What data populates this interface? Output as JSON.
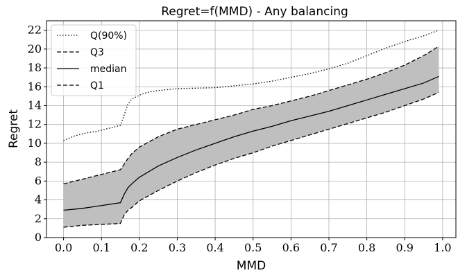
{
  "chart_data": {
    "type": "line",
    "title": "Regret=f(MMD) - Any balancing",
    "xlabel": "MMD",
    "ylabel": "Regret",
    "xlim": [
      -0.045,
      1.035
    ],
    "ylim": [
      0,
      23
    ],
    "xticks": [
      "0.0",
      "0.1",
      "0.2",
      "0.3",
      "0.4",
      "0.5",
      "0.6",
      "0.7",
      "0.8",
      "0.9",
      "1.0"
    ],
    "yticks": [
      "0",
      "2",
      "4",
      "6",
      "8",
      "10",
      "12",
      "14",
      "16",
      "18",
      "20",
      "22"
    ],
    "grid": true,
    "legend_position": "top-left",
    "shaded_band": "between Q1 and Q3",
    "colors": {
      "band": "#bfbfbf",
      "lines": "#000000",
      "grid": "#b0b0b0"
    },
    "series": [
      {
        "name": "Q(90%)",
        "style": "dotted",
        "x": [
          0,
          0.03,
          0.06,
          0.09,
          0.12,
          0.15,
          0.16,
          0.17,
          0.18,
          0.2,
          0.22,
          0.25,
          0.3,
          0.35,
          0.4,
          0.45,
          0.5,
          0.55,
          0.6,
          0.65,
          0.7,
          0.75,
          0.8,
          0.85,
          0.9,
          0.95,
          0.99
        ],
        "values": [
          10.3,
          10.8,
          11.1,
          11.3,
          11.6,
          11.9,
          13.0,
          14.2,
          14.7,
          15.1,
          15.4,
          15.6,
          15.8,
          15.85,
          15.9,
          16.1,
          16.3,
          16.6,
          17.0,
          17.4,
          17.9,
          18.5,
          19.3,
          20.1,
          20.8,
          21.4,
          22.0
        ]
      },
      {
        "name": "Q3",
        "style": "dashed",
        "x": [
          0,
          0.05,
          0.1,
          0.15,
          0.16,
          0.17,
          0.18,
          0.2,
          0.25,
          0.3,
          0.35,
          0.4,
          0.45,
          0.5,
          0.55,
          0.6,
          0.65,
          0.7,
          0.75,
          0.8,
          0.85,
          0.9,
          0.95,
          0.99
        ],
        "values": [
          5.7,
          6.2,
          6.7,
          7.2,
          7.8,
          8.4,
          8.9,
          9.6,
          10.7,
          11.5,
          12.0,
          12.5,
          13.0,
          13.6,
          14.0,
          14.5,
          15.0,
          15.6,
          16.2,
          16.8,
          17.5,
          18.3,
          19.3,
          20.3
        ]
      },
      {
        "name": "median",
        "style": "solid",
        "x": [
          0,
          0.05,
          0.1,
          0.15,
          0.16,
          0.17,
          0.18,
          0.2,
          0.25,
          0.3,
          0.35,
          0.4,
          0.45,
          0.5,
          0.55,
          0.6,
          0.65,
          0.7,
          0.75,
          0.8,
          0.85,
          0.9,
          0.95,
          0.99
        ],
        "values": [
          2.9,
          3.1,
          3.4,
          3.7,
          4.6,
          5.3,
          5.7,
          6.4,
          7.6,
          8.5,
          9.3,
          10.0,
          10.7,
          11.3,
          11.8,
          12.4,
          12.9,
          13.4,
          14.0,
          14.6,
          15.2,
          15.8,
          16.4,
          17.1
        ]
      },
      {
        "name": "Q1",
        "style": "dashed",
        "x": [
          0,
          0.05,
          0.1,
          0.15,
          0.16,
          0.17,
          0.18,
          0.2,
          0.25,
          0.3,
          0.35,
          0.4,
          0.45,
          0.5,
          0.55,
          0.6,
          0.65,
          0.7,
          0.75,
          0.8,
          0.85,
          0.9,
          0.95,
          0.99
        ],
        "values": [
          1.1,
          1.3,
          1.4,
          1.5,
          2.4,
          2.9,
          3.2,
          3.9,
          5.0,
          6.0,
          6.9,
          7.7,
          8.4,
          9.0,
          9.7,
          10.3,
          10.9,
          11.5,
          12.1,
          12.7,
          13.3,
          14.0,
          14.7,
          15.4
        ]
      }
    ]
  }
}
